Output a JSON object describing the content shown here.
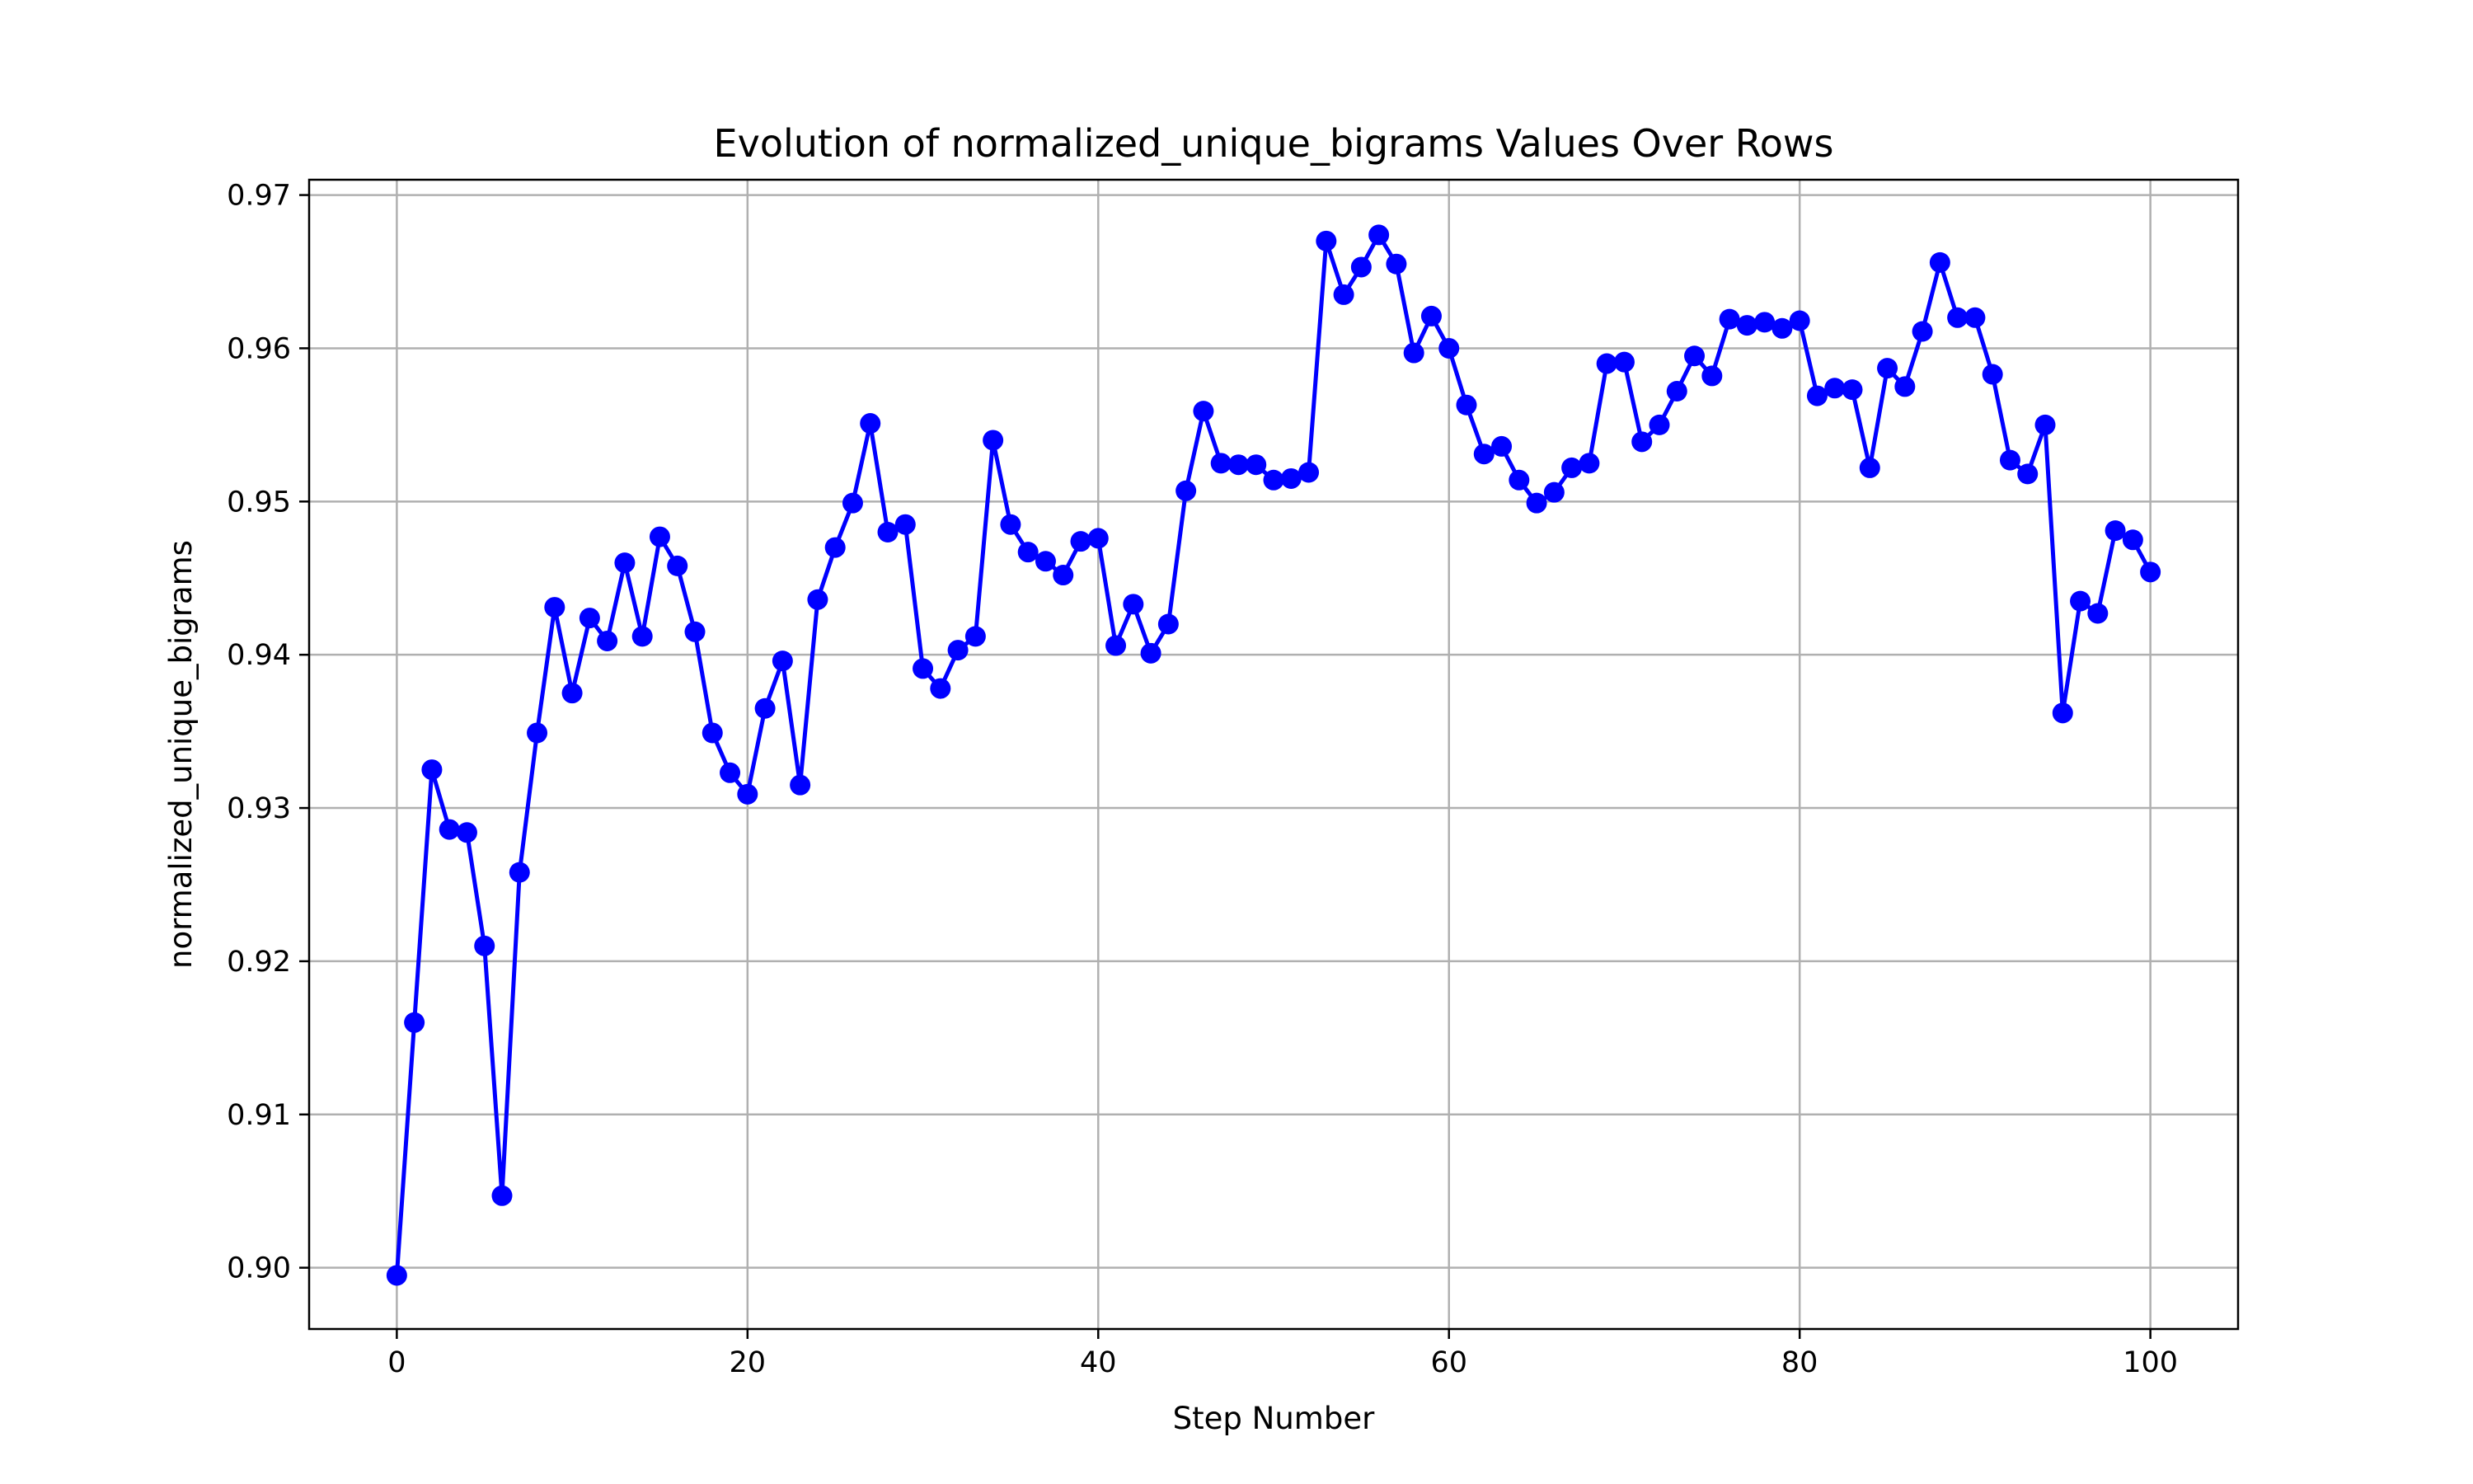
{
  "chart_data": {
    "type": "line",
    "title": "Evolution of normalized_unique_bigrams Values Over Rows",
    "xlabel": "Step Number",
    "ylabel": "normalized_unique_bigrams",
    "xlim": [
      -5,
      105
    ],
    "ylim": [
      0.896,
      0.971
    ],
    "xticks": [
      0,
      20,
      40,
      60,
      80,
      100
    ],
    "yticks": [
      0.9,
      0.91,
      0.92,
      0.93,
      0.94,
      0.95,
      0.96,
      0.97
    ],
    "xtick_labels": [
      "0",
      "20",
      "40",
      "60",
      "80",
      "100"
    ],
    "ytick_labels": [
      "0.90",
      "0.91",
      "0.92",
      "0.93",
      "0.94",
      "0.95",
      "0.96",
      "0.97"
    ],
    "grid": true,
    "color": "#0000ff",
    "series": [
      {
        "x": [
          0,
          1,
          2,
          3,
          4,
          5,
          6,
          7,
          8,
          9,
          10,
          11,
          12,
          13,
          14,
          15,
          16,
          17,
          18,
          19,
          20,
          21,
          22,
          23,
          24,
          25,
          26,
          27,
          28,
          29,
          30,
          31,
          32,
          33,
          34,
          35,
          36,
          37,
          38,
          39,
          40,
          41,
          42,
          43,
          44,
          45,
          46,
          47,
          48,
          49,
          50,
          51,
          52,
          53,
          54,
          55,
          56,
          57,
          58,
          59,
          60,
          61,
          62,
          63,
          64,
          65,
          66,
          67,
          68,
          69,
          70,
          71,
          72,
          73,
          74,
          75,
          76,
          77,
          78,
          79,
          80,
          81,
          82,
          83,
          84,
          85,
          86,
          87,
          88,
          89,
          90,
          91,
          92,
          93,
          94,
          95,
          96,
          97,
          98,
          99,
          100
        ],
        "values": [
          0.8995,
          0.916,
          0.9325,
          0.9286,
          0.9284,
          0.921,
          0.9047,
          0.9258,
          0.9349,
          0.9431,
          0.9375,
          0.9424,
          0.9409,
          0.946,
          0.9412,
          0.9477,
          0.9458,
          0.9415,
          0.9349,
          0.9323,
          0.9309,
          0.9365,
          0.9396,
          0.9315,
          0.9436,
          0.947,
          0.9499,
          0.9551,
          0.948,
          0.9485,
          0.9391,
          0.9378,
          0.9403,
          0.9412,
          0.954,
          0.9485,
          0.9467,
          0.9461,
          0.9452,
          0.9474,
          0.9476,
          0.9406,
          0.9433,
          0.9401,
          0.942,
          0.9507,
          0.9559,
          0.9525,
          0.9524,
          0.9524,
          0.9514,
          0.9515,
          0.9519,
          0.967,
          0.9635,
          0.9653,
          0.9674,
          0.9655,
          0.9597,
          0.9621,
          0.96,
          0.9563,
          0.9531,
          0.9536,
          0.9514,
          0.9499,
          0.9506,
          0.9522,
          0.9525,
          0.959,
          0.9591,
          0.9539,
          0.955,
          0.9572,
          0.9595,
          0.9582,
          0.9619,
          0.9615,
          0.9617,
          0.9613,
          0.9618,
          0.9569,
          0.9574,
          0.9573,
          0.9522,
          0.9587,
          0.9575,
          0.9611,
          0.9656,
          0.962,
          0.962,
          0.9583,
          0.9527,
          0.9518,
          0.955,
          0.9362,
          0.9435,
          0.9427,
          0.9481,
          0.9475,
          0.9454
        ]
      }
    ]
  }
}
